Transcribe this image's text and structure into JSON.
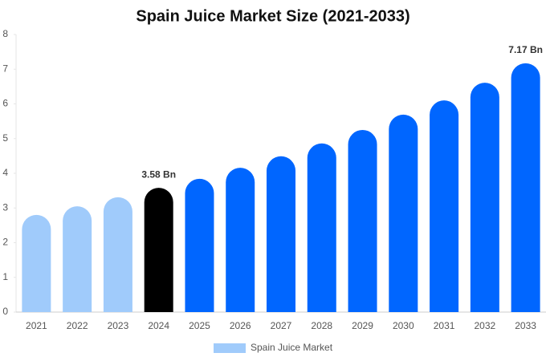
{
  "chart_data": {
    "type": "bar",
    "title": "Spain Juice Market Size (2021-2033)",
    "categories": [
      "2021",
      "2022",
      "2023",
      "2024",
      "2025",
      "2026",
      "2027",
      "2028",
      "2029",
      "2030",
      "2031",
      "2032",
      "2033"
    ],
    "series": [
      {
        "name": "Spain Juice Market",
        "color": "#a0cbfb",
        "values": [
          2.8,
          3.05,
          3.31,
          3.58,
          3.84,
          4.16,
          4.49,
          4.86,
          5.25,
          5.69,
          6.1,
          6.61,
          7.17
        ],
        "value_labels": [
          null,
          null,
          null,
          "3.58 Bn",
          null,
          null,
          null,
          null,
          null,
          null,
          null,
          null,
          "7.17 Bn"
        ],
        "colors": [
          "#a0cbfb",
          "#a0cbfb",
          "#a0cbfb",
          "#000000",
          "#0066ff",
          "#0066ff",
          "#0066ff",
          "#0066ff",
          "#0066ff",
          "#0066ff",
          "#0066ff",
          "#0066ff",
          "#0066ff"
        ]
      }
    ],
    "ylim": [
      0,
      8
    ],
    "yticks": [
      0,
      1,
      2,
      3,
      4,
      5,
      6,
      7,
      8
    ],
    "grid": false,
    "legend": "bottom"
  }
}
